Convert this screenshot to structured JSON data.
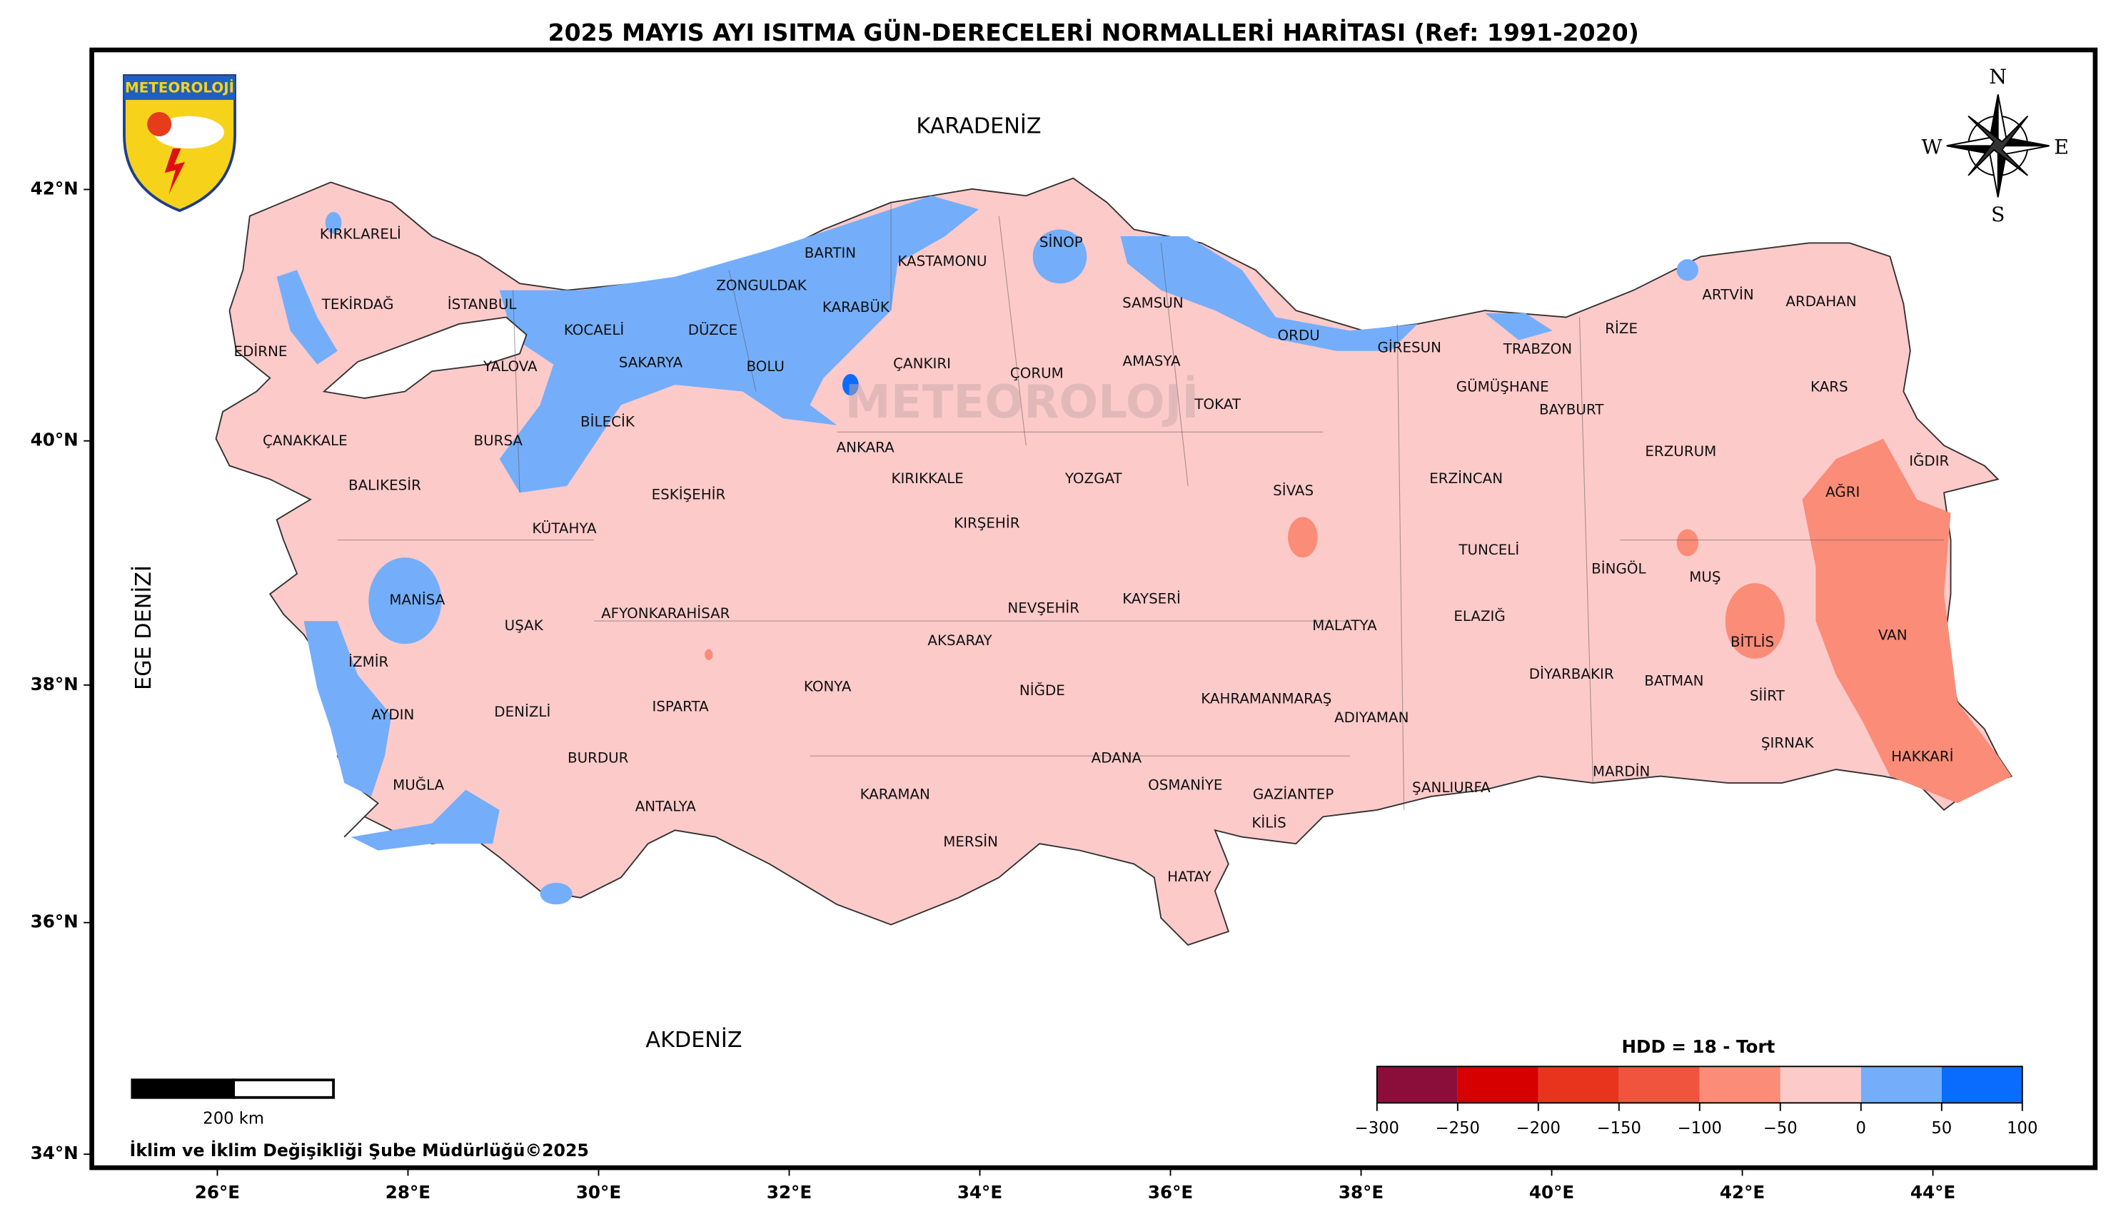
{
  "title": "2025 MAYIS AYI ISITMA GÜN-DERECELERİ NORMALLERİ HARİTASI (Ref: 1991-2020)",
  "logo": "METEOROLOJİ",
  "watermark": "METEOROLOJİ",
  "compass": [
    "N",
    "E",
    "S",
    "W"
  ],
  "seas": [
    "KARADENİZ",
    "AKDENİZ",
    "EGE DENİZİ"
  ],
  "provinces": [
    "KIRKLARELİ",
    "TEKİRDAĞ",
    "EDİRNE",
    "İSTANBUL",
    "KOCAELİ",
    "YALOVA",
    "SAKARYA",
    "DÜZCE",
    "ZONGULDAK",
    "BARTIN",
    "KARABÜK",
    "BOLU",
    "KASTAMONU",
    "SİNOP",
    "SAMSUN",
    "ORDU",
    "GİRESUN",
    "TRABZON",
    "RİZE",
    "ARTVİN",
    "ARDAHAN",
    "KARS",
    "IĞDIR",
    "ÇANAKKALE",
    "BURSA",
    "BİLECİK",
    "BALIKESİR",
    "KÜTAHYA",
    "ESKİŞEHİR",
    "ÇANKIRI",
    "ÇORUM",
    "AMASYA",
    "TOKAT",
    "ANKARA",
    "KIRIKKALE",
    "YOZGAT",
    "KIRŞEHİR",
    "SİVAS",
    "ERZİNCAN",
    "ERZURUM",
    "BAYBURT",
    "GÜMÜŞHANE",
    "AĞRI",
    "MANİSA",
    "UŞAK",
    "AFYONKARAHİSAR",
    "İZMİR",
    "AYDIN",
    "DENİZLİ",
    "MUĞLA",
    "BURDUR",
    "ISPARTA",
    "ANTALYA",
    "KONYA",
    "AKSARAY",
    "NEVŞEHİR",
    "KAYSERİ",
    "NİĞDE",
    "KARAMAN",
    "MERSİN",
    "ADANA",
    "OSMANİYE",
    "HATAY",
    "GAZİANTEP",
    "KİLİS",
    "KAHRAMANMARAŞ",
    "ADIYAMAN",
    "MALATYA",
    "ŞANLIURFA",
    "TUNCELİ",
    "ELAZIĞ",
    "BİNGÖL",
    "MUŞ",
    "BİTLİS",
    "VAN",
    "DİYARBAKIR",
    "BATMAN",
    "SİİRT",
    "ŞIRNAK",
    "MARDİN",
    "HAKKARİ"
  ],
  "xticks": [
    {
      "value": 26,
      "label": "26°E"
    },
    {
      "value": 28,
      "label": "28°E"
    },
    {
      "value": 30,
      "label": "30°E"
    },
    {
      "value": 32,
      "label": "32°E"
    },
    {
      "value": 34,
      "label": "34°E"
    },
    {
      "value": 36,
      "label": "36°E"
    },
    {
      "value": 38,
      "label": "38°E"
    },
    {
      "value": 40,
      "label": "40°E"
    },
    {
      "value": 42,
      "label": "42°E"
    },
    {
      "value": 44,
      "label": "44°E"
    }
  ],
  "yticks": [
    {
      "value": 34,
      "label": "34°N"
    },
    {
      "value": 36,
      "label": "36°N"
    },
    {
      "value": 38,
      "label": "38°N"
    },
    {
      "value": 40,
      "label": "40°N"
    },
    {
      "value": 42,
      "label": "42°N"
    }
  ],
  "legend": {
    "title": "HDD = 18 - Tort",
    "colors": [
      "#8b0e3a",
      "#d60000",
      "#e8341c",
      "#f0543e",
      "#fa8c78",
      "#fdcaca",
      "#74aefb",
      "#0a6cff"
    ],
    "ticks": [
      {
        "value": -300,
        "label": "−300"
      },
      {
        "value": -250,
        "label": "−250"
      },
      {
        "value": -200,
        "label": "−200"
      },
      {
        "value": -150,
        "label": "−150"
      },
      {
        "value": -100,
        "label": "−100"
      },
      {
        "value": -50,
        "label": "−50"
      },
      0,
      50,
      100
    ]
  },
  "scale_bar": "200 km",
  "credit": "İklim ve İklim Değişikliği Şube Müdürlüğü©2025"
}
